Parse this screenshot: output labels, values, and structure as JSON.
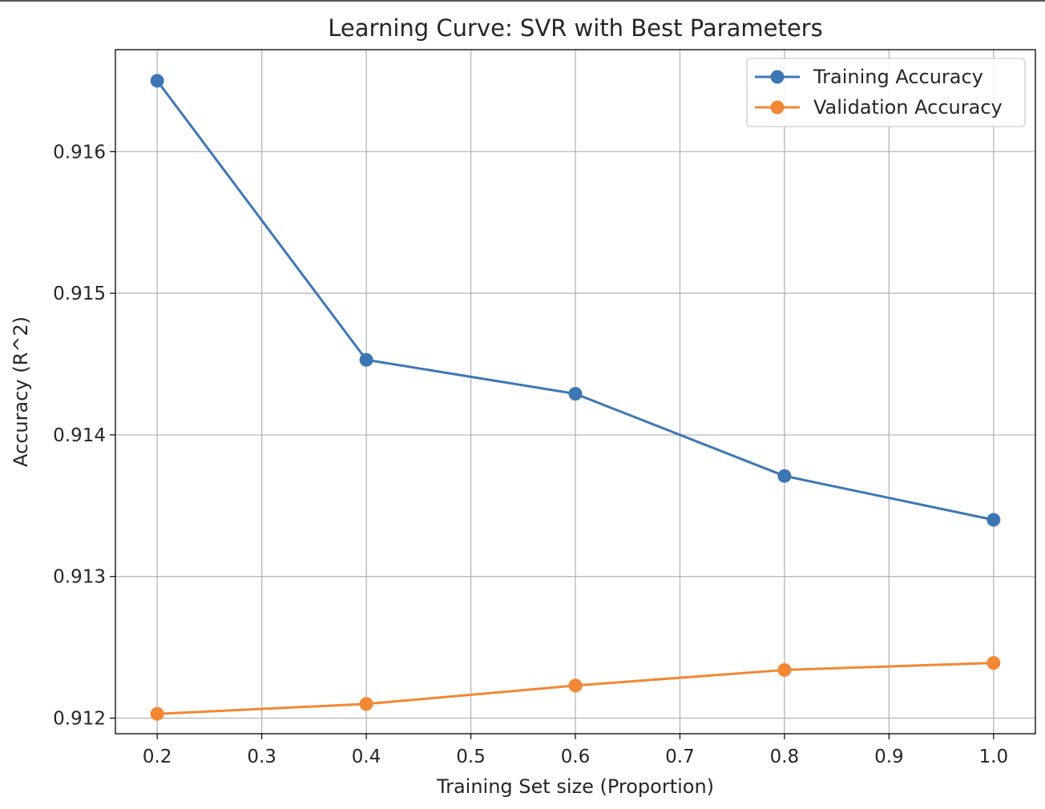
{
  "chart_data": {
    "type": "line",
    "title": "Learning Curve: SVR with Best Parameters",
    "xlabel": "Training Set size (Proportion)",
    "ylabel": "Accuracy (R^2)",
    "x": [
      0.2,
      0.4,
      0.6,
      0.8,
      1.0
    ],
    "xlim": [
      0.16,
      1.04
    ],
    "ylim": [
      0.91189,
      0.91672
    ],
    "xticks": [
      0.2,
      0.3,
      0.4,
      0.5,
      0.6,
      0.7,
      0.8,
      0.9,
      1.0
    ],
    "xtick_labels": [
      "0.2",
      "0.3",
      "0.4",
      "0.5",
      "0.6",
      "0.7",
      "0.8",
      "0.9",
      "1.0"
    ],
    "yticks": [
      0.912,
      0.913,
      0.914,
      0.915,
      0.916
    ],
    "ytick_labels": [
      "0.912",
      "0.913",
      "0.914",
      "0.915",
      "0.916"
    ],
    "grid": true,
    "legend_position": "top-right",
    "series": [
      {
        "name": "Training Accuracy",
        "color": "#3d76b4",
        "marker": "circle",
        "values": [
          0.9165,
          0.91453,
          0.91429,
          0.91371,
          0.9134
        ]
      },
      {
        "name": "Validation Accuracy",
        "color": "#f28734",
        "marker": "circle",
        "values": [
          0.91203,
          0.9121,
          0.91223,
          0.91234,
          0.91239
        ]
      }
    ]
  }
}
